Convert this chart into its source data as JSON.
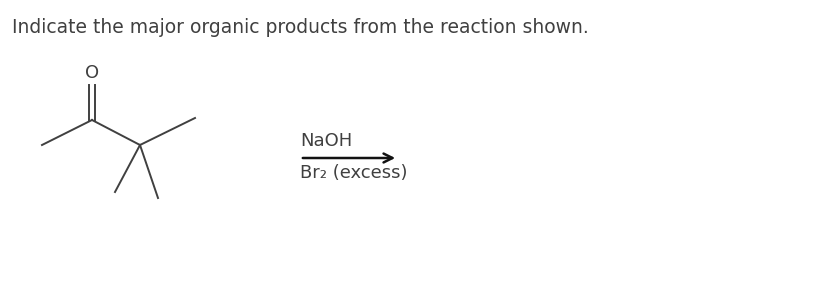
{
  "title": "Indicate the major organic products from the reaction shown.",
  "title_fontsize": 13.5,
  "title_color": "#404040",
  "background_color": "#ffffff",
  "reagent_line1": "NaOH",
  "reagent_line2": "Br₂ (excess)",
  "reagent_fontsize": 13,
  "molecule_color": "#404040",
  "arrow_color": "#111111",
  "figwidth": 8.31,
  "figheight": 3.02,
  "dpi": 100
}
